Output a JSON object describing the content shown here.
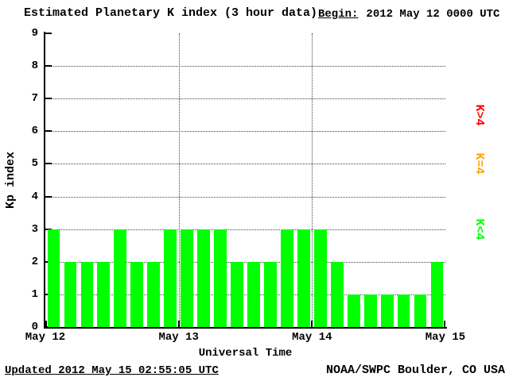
{
  "header": {
    "title": "Estimated Planetary K index (3 hour data)",
    "begin_label": "Begin:",
    "begin_value": "2012 May 12 0000 UTC"
  },
  "axes": {
    "ylabel": "Kp index",
    "xlabel": "Universal Time"
  },
  "legend": [
    {
      "label": "K>4",
      "color": "#ff0000",
      "kp_center": 6.5
    },
    {
      "label": "K=4",
      "color": "#ffa500",
      "kp_center": 5.0
    },
    {
      "label": "K<4",
      "color": "#00ff00",
      "kp_center": 3.0
    }
  ],
  "footer": {
    "updated": "Updated 2012 May 15 02:55:05 UTC",
    "source": "NOAA/SWPC Boulder, CO USA"
  },
  "chart_data": {
    "type": "bar",
    "title": "Estimated Planetary K index (3 hour data)",
    "xlabel": "Universal Time",
    "ylabel": "Kp index",
    "ylim": [
      0,
      9
    ],
    "y_ticks": [
      0,
      1,
      2,
      3,
      4,
      5,
      6,
      7,
      8,
      9
    ],
    "x_tick_labels": [
      "May 12",
      "May 13",
      "May 14",
      "May 15"
    ],
    "hours_per_bar": 3,
    "bar_color": "#00ff00",
    "grid": "dotted",
    "legend_position": "right",
    "values": [
      3,
      2,
      2,
      2,
      3,
      2,
      2,
      3,
      3,
      3,
      3,
      2,
      2,
      2,
      3,
      3,
      3,
      2,
      1,
      1,
      1,
      1,
      1,
      2
    ]
  }
}
